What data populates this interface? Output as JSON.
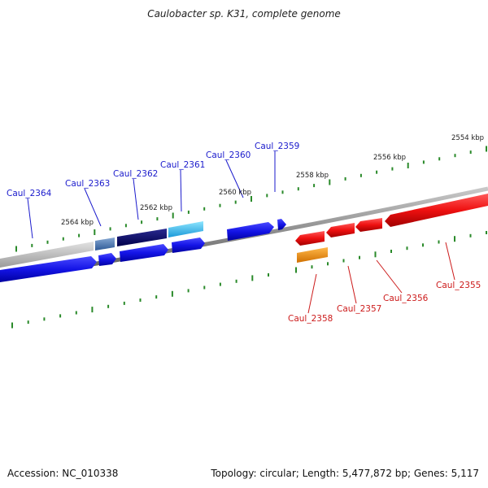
{
  "title": "Caulobacter sp. K31, complete genome",
  "footer": {
    "accession": "Accession: NC_010338",
    "summary": "Topology: circular; Length: 5,477,872 bp; Genes: 5,117"
  },
  "scale_labels": [
    "2564 kbp",
    "2562 kbp",
    "2560 kbp",
    "2558 kbp",
    "2556 kbp",
    "2554 kbp"
  ],
  "genes": [
    {
      "label": "Caul_2364",
      "color": "#0000cc"
    },
    {
      "label": "Caul_2363",
      "color": "#0000cc"
    },
    {
      "label": "Caul_2362",
      "color": "#0000cc"
    },
    {
      "label": "Caul_2361",
      "color": "#0000cc"
    },
    {
      "label": "Caul_2360",
      "color": "#0000cc"
    },
    {
      "label": "Caul_2359",
      "color": "#0000cc"
    },
    {
      "label": "Caul_2358",
      "color": "#cc0000"
    },
    {
      "label": "Caul_2357",
      "color": "#cc0000"
    },
    {
      "label": "Caul_2356",
      "color": "#cc0000"
    },
    {
      "label": "Caul_2355",
      "color": "#cc0000"
    }
  ]
}
